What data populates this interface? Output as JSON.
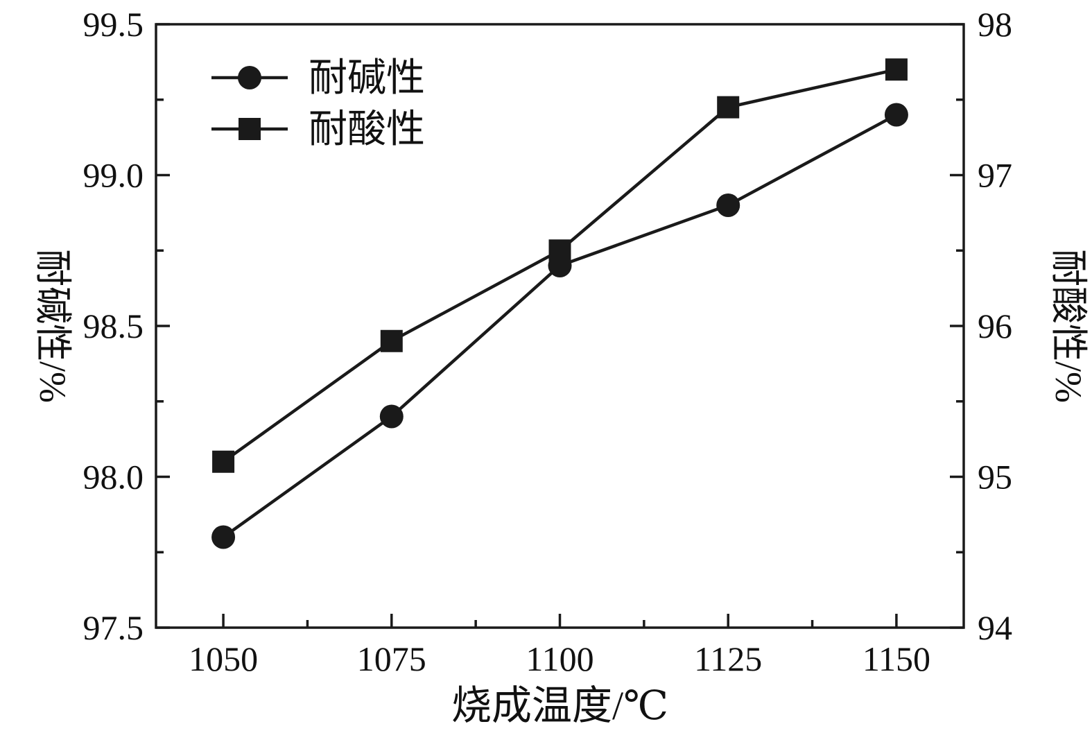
{
  "chart_data": {
    "type": "line",
    "title": "",
    "xlabel": "烧成温度/℃",
    "ylabel_left": "耐碱性/%",
    "ylabel_right": "耐酸性/%",
    "x": [
      1050,
      1075,
      1100,
      1125,
      1150
    ],
    "xticks": [
      1050,
      1075,
      1100,
      1125,
      1150
    ],
    "xlim": [
      1040,
      1160
    ],
    "ylim_left": [
      97.5,
      99.5
    ],
    "yticks_left": [
      97.5,
      98.0,
      98.5,
      99.0,
      99.5
    ],
    "ylim_right": [
      94,
      98
    ],
    "yticks_right": [
      94,
      95,
      96,
      97,
      98
    ],
    "series": [
      {
        "name": "耐碱性",
        "marker": "circle",
        "axis": "left",
        "values": [
          97.8,
          98.2,
          98.7,
          98.9,
          99.2
        ]
      },
      {
        "name": "耐酸性",
        "marker": "square",
        "axis": "right",
        "values": [
          95.1,
          95.9,
          96.5,
          97.45,
          97.7
        ]
      }
    ],
    "legend": {
      "position": "top-left-inside",
      "entries": [
        "耐碱性",
        "耐酸性"
      ]
    },
    "line_color": "#1a1a1a",
    "background": "#ffffff",
    "grid": false
  }
}
